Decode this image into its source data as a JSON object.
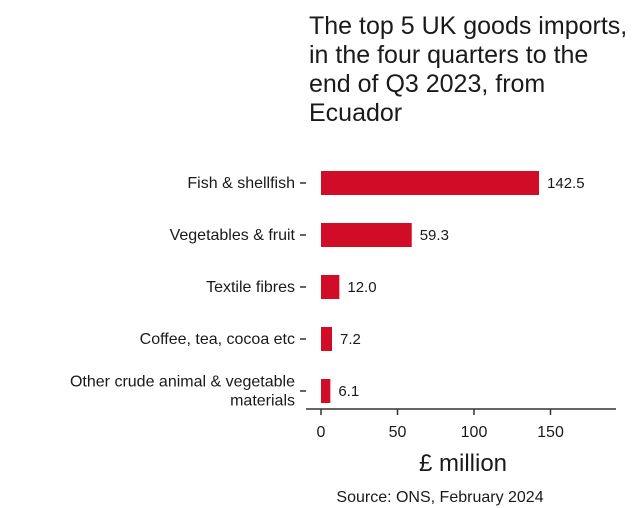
{
  "chart_data": {
    "type": "bar",
    "orientation": "horizontal",
    "title": "The top 5 UK goods imports, in the four quarters to the end of Q3 2023, from Ecuador",
    "categories": [
      "Fish & shellfish",
      "Vegetables & fruit",
      "Textile fibres",
      "Coffee, tea, cocoa etc",
      "Other crude animal & vegetable materials"
    ],
    "values": [
      142.5,
      59.3,
      12.0,
      7.2,
      6.1
    ],
    "value_labels": [
      "142.5",
      "59.3",
      "12.0",
      "7.2",
      "6.1"
    ],
    "xlabel": "£ million",
    "ylabel": "",
    "xlim": [
      0,
      195
    ],
    "xticks": [
      0,
      50,
      100,
      150
    ],
    "xtick_labels": [
      "0",
      "50",
      "100",
      "150"
    ],
    "bar_color": "#d00c27",
    "grid": false,
    "source": "Source: ONS, February 2024"
  }
}
